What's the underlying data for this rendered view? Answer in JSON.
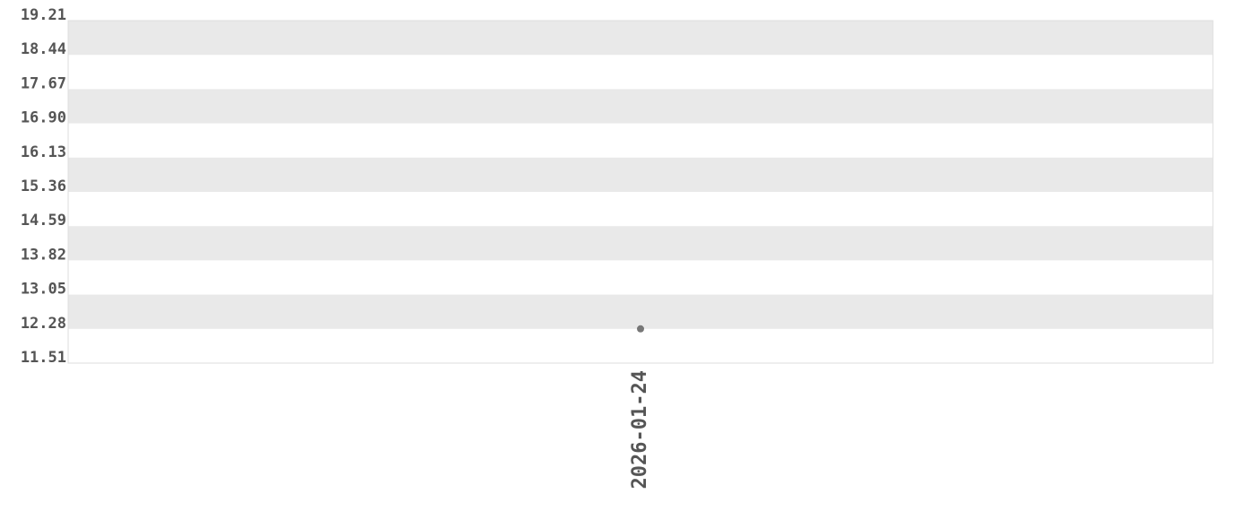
{
  "chart_data": {
    "type": "scatter",
    "title": "",
    "xlabel": "",
    "ylabel": "",
    "ylim": [
      11.51,
      19.21
    ],
    "y_ticks": [
      "11.51",
      "12.28",
      "13.05",
      "13.82",
      "14.59",
      "15.36",
      "16.13",
      "16.90",
      "17.67",
      "18.44",
      "19.21"
    ],
    "x_categories": [
      "2026-01-24"
    ],
    "points": [
      {
        "x": "2026-01-24",
        "y": 12.28
      }
    ],
    "grid": "alternating horizontal bands",
    "colors": {
      "band": "#e9e9e9",
      "point": "#777777",
      "text": "#555555",
      "border": "#dddddd"
    }
  }
}
